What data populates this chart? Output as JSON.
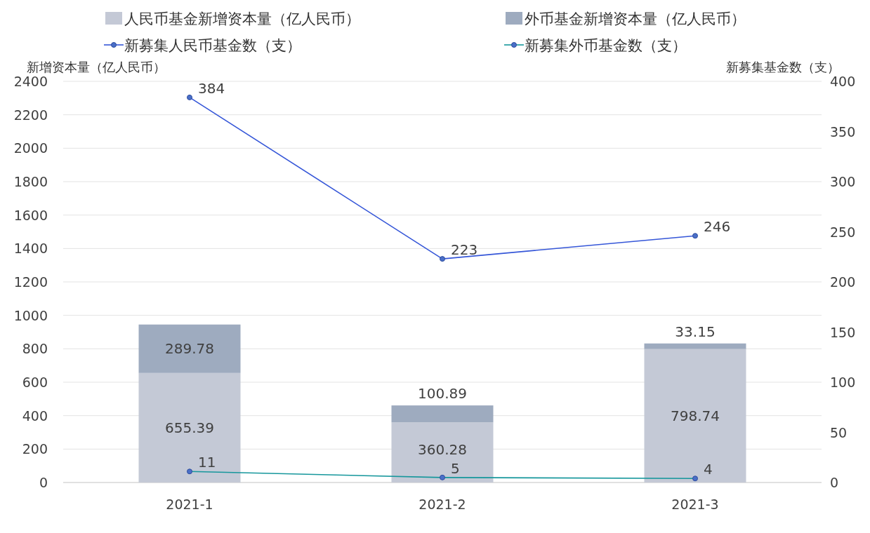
{
  "chart_data": {
    "type": "bar",
    "stacked": true,
    "xlabel": null,
    "ylabel": "新增资本量（亿人民币）",
    "y2label": "新募集基金数（支）",
    "categories": [
      "2021-1",
      "2021-2",
      "2021-3"
    ],
    "series": [
      {
        "name": "人民币基金新增资本量（亿人民币）",
        "color": "#c4c9d6",
        "values": [
          655.39,
          360.28,
          798.74
        ]
      },
      {
        "name": "外币基金新增资本量（亿人民币）",
        "color": "#9eabbf",
        "values": [
          289.78,
          100.89,
          33.15
        ]
      },
      {
        "name": "新募集人民币基金数（支）",
        "type": "line",
        "axis": "y2",
        "color": "#3556d8",
        "values": [
          384,
          223,
          246
        ]
      },
      {
        "name": "新募集外币基金数（支）",
        "type": "line",
        "axis": "y2",
        "color": "#16979c",
        "values": [
          11,
          5,
          4
        ]
      }
    ],
    "ylim": [
      0,
      2400
    ],
    "yticks": [
      0,
      200,
      400,
      600,
      800,
      1000,
      1200,
      1400,
      1600,
      1800,
      2000,
      2200,
      2400
    ],
    "y2lim": [
      0,
      400
    ],
    "y2ticks": [
      0,
      50,
      100,
      150,
      200,
      250,
      300,
      350,
      400
    ],
    "grid": "y",
    "legend": "top",
    "marker": "circle",
    "data_labels": true
  }
}
